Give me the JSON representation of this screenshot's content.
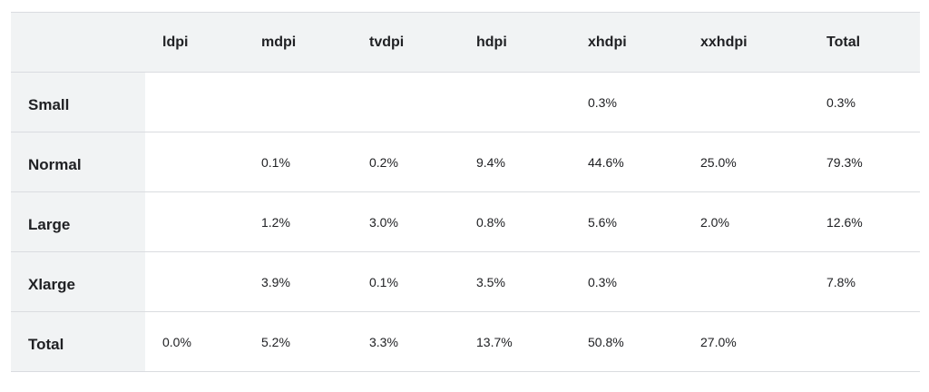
{
  "table": {
    "columns": [
      "ldpi",
      "mdpi",
      "tvdpi",
      "hdpi",
      "xhdpi",
      "xxhdpi",
      "Total"
    ],
    "rows": [
      {
        "label": "Small",
        "cells": [
          null,
          null,
          null,
          null,
          "0.3%",
          null,
          "0.3%"
        ]
      },
      {
        "label": "Normal",
        "cells": [
          null,
          "0.1%",
          "0.2%",
          "9.4%",
          "44.6%",
          "25.0%",
          "79.3%"
        ]
      },
      {
        "label": "Large",
        "cells": [
          null,
          "1.2%",
          "3.0%",
          "0.8%",
          "5.6%",
          "2.0%",
          "12.6%"
        ]
      },
      {
        "label": "Xlarge",
        "cells": [
          null,
          "3.9%",
          "0.1%",
          "3.5%",
          "0.3%",
          null,
          "7.8%"
        ]
      },
      {
        "label": "Total",
        "cells": [
          "0.0%",
          "5.2%",
          "3.3%",
          "13.7%",
          "50.8%",
          "27.0%",
          null
        ]
      }
    ]
  }
}
